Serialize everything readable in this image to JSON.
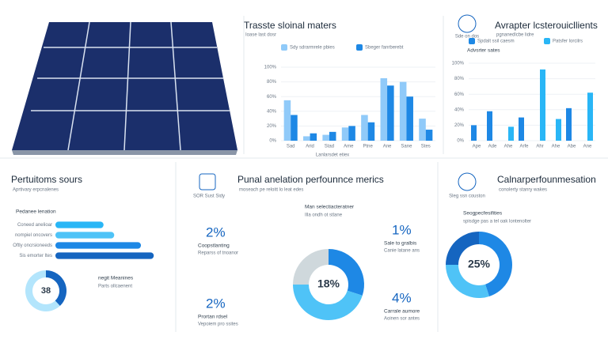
{
  "chart_data": [
    {
      "type": "bar",
      "title": "Trasste sloinal maters",
      "subtitle": "Ioase last dosr",
      "xlabel": "Lanlarsdet etiex",
      "categories": [
        "Sad",
        "Arid",
        "Stad",
        "Ame",
        "Ptne",
        "Ane",
        "Sane",
        "Stes"
      ],
      "series": [
        {
          "name": "Sdy sdrarmrele pbies",
          "color": "#90caf9",
          "values": [
            55,
            6,
            8,
            18,
            35,
            85,
            80,
            30
          ]
        },
        {
          "name": "Sbeger fanrberebt",
          "color": "#1e88e5",
          "values": [
            35,
            10,
            12,
            20,
            25,
            75,
            60,
            15
          ]
        }
      ],
      "ylim": [
        0,
        100
      ],
      "yticks": [
        {
          "value": 0,
          "label": "0%"
        },
        {
          "value": 20,
          "label": "20%"
        },
        {
          "value": 40,
          "label": "40%"
        },
        {
          "value": 60,
          "label": "60%"
        },
        {
          "value": 80,
          "label": "80%"
        },
        {
          "value": 100,
          "label": "100%"
        }
      ]
    },
    {
      "type": "bar",
      "title": "Avrapter lcsterouicllients",
      "subtitle": "pgnanedlcbe lidre",
      "icon_caption": "Sde on dos",
      "heading": "Advsrter sates",
      "categories": [
        "Ape",
        "Ade",
        "Ahe",
        "Arfe",
        "Ahr",
        "Ahe",
        "Abe",
        "Ane"
      ],
      "series": [
        {
          "name": "Spdalt ssil caesm",
          "color": "#1e88e5",
          "values": [
            20,
            38,
            null,
            30,
            null,
            null,
            42,
            null
          ]
        },
        {
          "name": "Patsfer lorcilrs",
          "color": "#29b6f6",
          "values": [
            null,
            null,
            18,
            null,
            92,
            28,
            null,
            62
          ]
        }
      ],
      "ylim": [
        0,
        100
      ],
      "yticks": [
        {
          "value": 0,
          "label": "0%"
        },
        {
          "value": 20,
          "label": "20%"
        },
        {
          "value": 40,
          "label": "40%"
        },
        {
          "value": 60,
          "label": "60%"
        },
        {
          "value": 80,
          "label": "80%"
        },
        {
          "value": 100,
          "label": "100%"
        }
      ]
    },
    {
      "type": "hbar",
      "title": "Pertuitoms sours",
      "subtitle": "Aprtivary erpcnalenes",
      "heading": "Pedanee lenation",
      "categories": [
        "Coneed anelioar",
        "nompiel oncovers",
        "Oftly oncrsioneeds",
        "Sis emorter ltes"
      ],
      "values": [
        45,
        55,
        80,
        92
      ],
      "colors": [
        "#29b6f6",
        "#4fc3f7",
        "#1e88e5",
        "#1565c0"
      ],
      "xlim": [
        0,
        100
      ]
    },
    {
      "type": "donut",
      "legend_title": "negit Meanines",
      "legend_text": "Parts ollcaenent",
      "values": [
        38,
        62
      ],
      "colors": [
        "#1565c0",
        "#b3e5fc"
      ],
      "center_text": "38"
    },
    {
      "type": "donut",
      "title": "Punal anelation perfounnce merics",
      "subtitle": "moseach pe reloitt lo leat edes",
      "heading": "Man selectiacteratner",
      "note": "Illa ondh ot stlane",
      "values": [
        30,
        45,
        25
      ],
      "colors": [
        "#1e88e5",
        "#4fc3f7",
        "#cfd8dc"
      ],
      "center_text": "18%"
    },
    {
      "type": "donut",
      "title": "Calnarperfounmesation",
      "subtitle": "conolerty stanry wakes",
      "icon_caption": "Sleg ssn couston",
      "heading": "Seogpecfesifities",
      "note": "spisdge pas a tel oak lontenolter",
      "values": [
        45,
        30,
        25
      ],
      "colors": [
        "#1e88e5",
        "#4fc3f7",
        "#1565c0"
      ],
      "center_text": "25%"
    }
  ],
  "cards": {
    "icon_caption": "SOR Sust Sidy",
    "items": [
      {
        "value": "2%",
        "label": "Coopstlanting",
        "text": "Reparss of tnoanor"
      },
      {
        "value": "1%",
        "label": "Sale to gralbis",
        "text": "Canie latane ans"
      },
      {
        "value": "2%",
        "label": "Prortan rdsel",
        "text": "Vepoiem pro ssites"
      },
      {
        "value": "4%",
        "label": "Carrale aumore",
        "text": "Aoinen sor antes"
      }
    ]
  }
}
